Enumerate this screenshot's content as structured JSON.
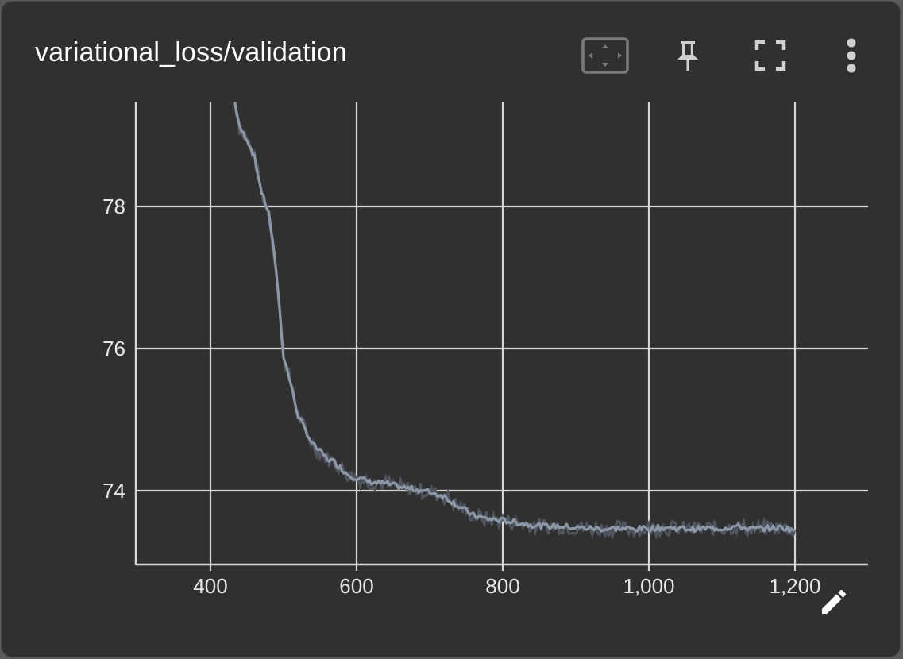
{
  "card": {
    "title": "variational_loss/validation"
  },
  "toolbar": {
    "fit_domain_icon": "fit-to-data-icon",
    "pin_icon": "pin-icon",
    "fullscreen_icon": "fullscreen-icon",
    "more_icon": "more-vert-icon",
    "edit_icon": "pencil-icon"
  },
  "colors": {
    "background": "#303030",
    "grid": "#d8d8d8",
    "line": "#8c98a8",
    "raw_line": "#4f5660",
    "text": "#ffffff"
  },
  "chart_data": {
    "type": "line",
    "title": "",
    "xlabel": "",
    "ylabel": "",
    "xlim": [
      300,
      1300
    ],
    "ylim": [
      73.0,
      79.5
    ],
    "x_ticks": [
      400,
      600,
      800,
      1000,
      1200
    ],
    "x_tick_labels": [
      "400",
      "600",
      "800",
      "1,000",
      "1,200"
    ],
    "y_ticks": [
      74,
      76,
      78
    ],
    "y_tick_labels": [
      "74",
      "76",
      "78"
    ],
    "grid": true,
    "series": [
      {
        "x": [
          433,
          440,
          450,
          460,
          470,
          480,
          490,
          500,
          510,
          520,
          530,
          540,
          550,
          560,
          570,
          580,
          590,
          600,
          620,
          640,
          660,
          680,
          700,
          720,
          740,
          760,
          780,
          800,
          820,
          840,
          860,
          880,
          900,
          920,
          940,
          960,
          980,
          1000,
          1020,
          1040,
          1060,
          1080,
          1100,
          1120,
          1140,
          1160,
          1180,
          1200
        ],
        "values": [
          79.5,
          79.1,
          78.95,
          78.7,
          78.2,
          77.9,
          77.1,
          75.9,
          75.5,
          75.05,
          74.85,
          74.65,
          74.55,
          74.45,
          74.4,
          74.3,
          74.22,
          74.18,
          74.12,
          74.1,
          74.05,
          74.02,
          73.98,
          73.92,
          73.78,
          73.65,
          73.6,
          73.58,
          73.55,
          73.52,
          73.5,
          73.5,
          73.48,
          73.47,
          73.46,
          73.47,
          73.46,
          73.47,
          73.48,
          73.47,
          73.46,
          73.47,
          73.47,
          73.5,
          73.46,
          73.47,
          73.48,
          73.45
        ]
      }
    ]
  }
}
